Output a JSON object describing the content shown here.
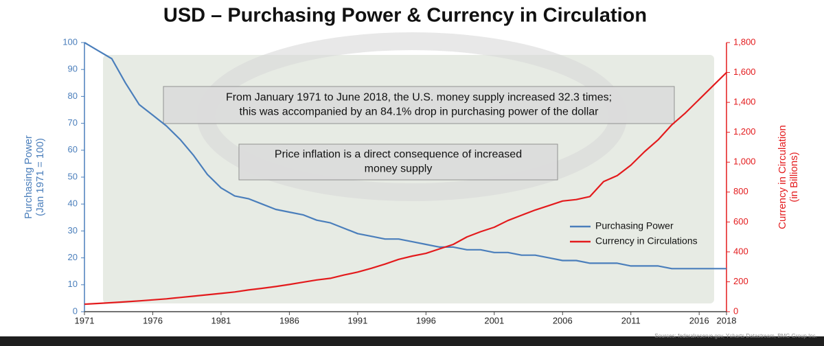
{
  "chart_data": {
    "type": "line",
    "title": "USD – Purchasing Power & Currency in Circulation",
    "y_label": [
      "Purchasing Power",
      "(Jan 1971 = 100)"
    ],
    "y2_label": [
      "Currency in Circulation",
      "(in Billions)"
    ],
    "annotations": [
      [
        "From January 1971 to June 2018, the U.S. money supply increased 32.3 times;",
        "this was accompanied by an 84.1% drop in purchasing power of the dollar"
      ],
      [
        "Price inflation is a direct consequence of increased",
        "money supply"
      ]
    ],
    "source": "Sources: federalreserve.gov, Ycharts Datastream, BMG Group Inc.",
    "x": [
      1971,
      1972,
      1973,
      1974,
      1975,
      1976,
      1977,
      1978,
      1979,
      1980,
      1981,
      1982,
      1983,
      1984,
      1985,
      1986,
      1987,
      1988,
      1989,
      1990,
      1991,
      1992,
      1993,
      1994,
      1995,
      1996,
      1997,
      1998,
      1999,
      2000,
      2001,
      2002,
      2003,
      2004,
      2005,
      2006,
      2007,
      2008,
      2009,
      2010,
      2011,
      2012,
      2013,
      2014,
      2015,
      2016,
      2017,
      2018
    ],
    "series": [
      {
        "name": "Purchasing Power",
        "color": "#4a7ebb",
        "axis": "y",
        "values": [
          100,
          97,
          94,
          85,
          77,
          73,
          69,
          64,
          58,
          51,
          46,
          43,
          42,
          40,
          38,
          37,
          36,
          34,
          33,
          31,
          29,
          28,
          27,
          27,
          26,
          25,
          24,
          24,
          23,
          23,
          22,
          22,
          21,
          21,
          20,
          19,
          19,
          18,
          18,
          18,
          17,
          17,
          17,
          16,
          16,
          16,
          16,
          16
        ]
      },
      {
        "name": "Currency in Circulations",
        "color": "#e31a1c",
        "axis": "y2",
        "values": [
          50,
          55,
          60,
          66,
          72,
          79,
          86,
          95,
          104,
          113,
          122,
          132,
          145,
          156,
          168,
          182,
          197,
          212,
          223,
          245,
          265,
          290,
          318,
          350,
          372,
          390,
          420,
          450,
          500,
          535,
          565,
          610,
          645,
          680,
          710,
          740,
          750,
          770,
          870,
          910,
          980,
          1070,
          1150,
          1250,
          1330,
          1420,
          1510,
          1600
        ]
      }
    ],
    "xlim": [
      1971,
      2018
    ],
    "xticks": [
      1971,
      1976,
      1981,
      1986,
      1991,
      1996,
      2001,
      2006,
      2011,
      2016,
      2018
    ],
    "ylim": [
      0,
      100
    ],
    "yticks": [
      0,
      10,
      20,
      30,
      40,
      50,
      60,
      70,
      80,
      90,
      100
    ],
    "y2lim": [
      0,
      1800
    ],
    "y2ticks": [
      0,
      200,
      400,
      600,
      800,
      {
        "value": 1000,
        "label": "1,000"
      },
      {
        "value": 1200,
        "label": "1,200"
      },
      {
        "value": 1400,
        "label": "1,400"
      },
      {
        "value": 1600,
        "label": "1,600"
      },
      {
        "value": 1800,
        "label": "1,800"
      }
    ],
    "y_color": "#4a7ebb",
    "y2_color": "#e31a1c",
    "legend": "right"
  }
}
